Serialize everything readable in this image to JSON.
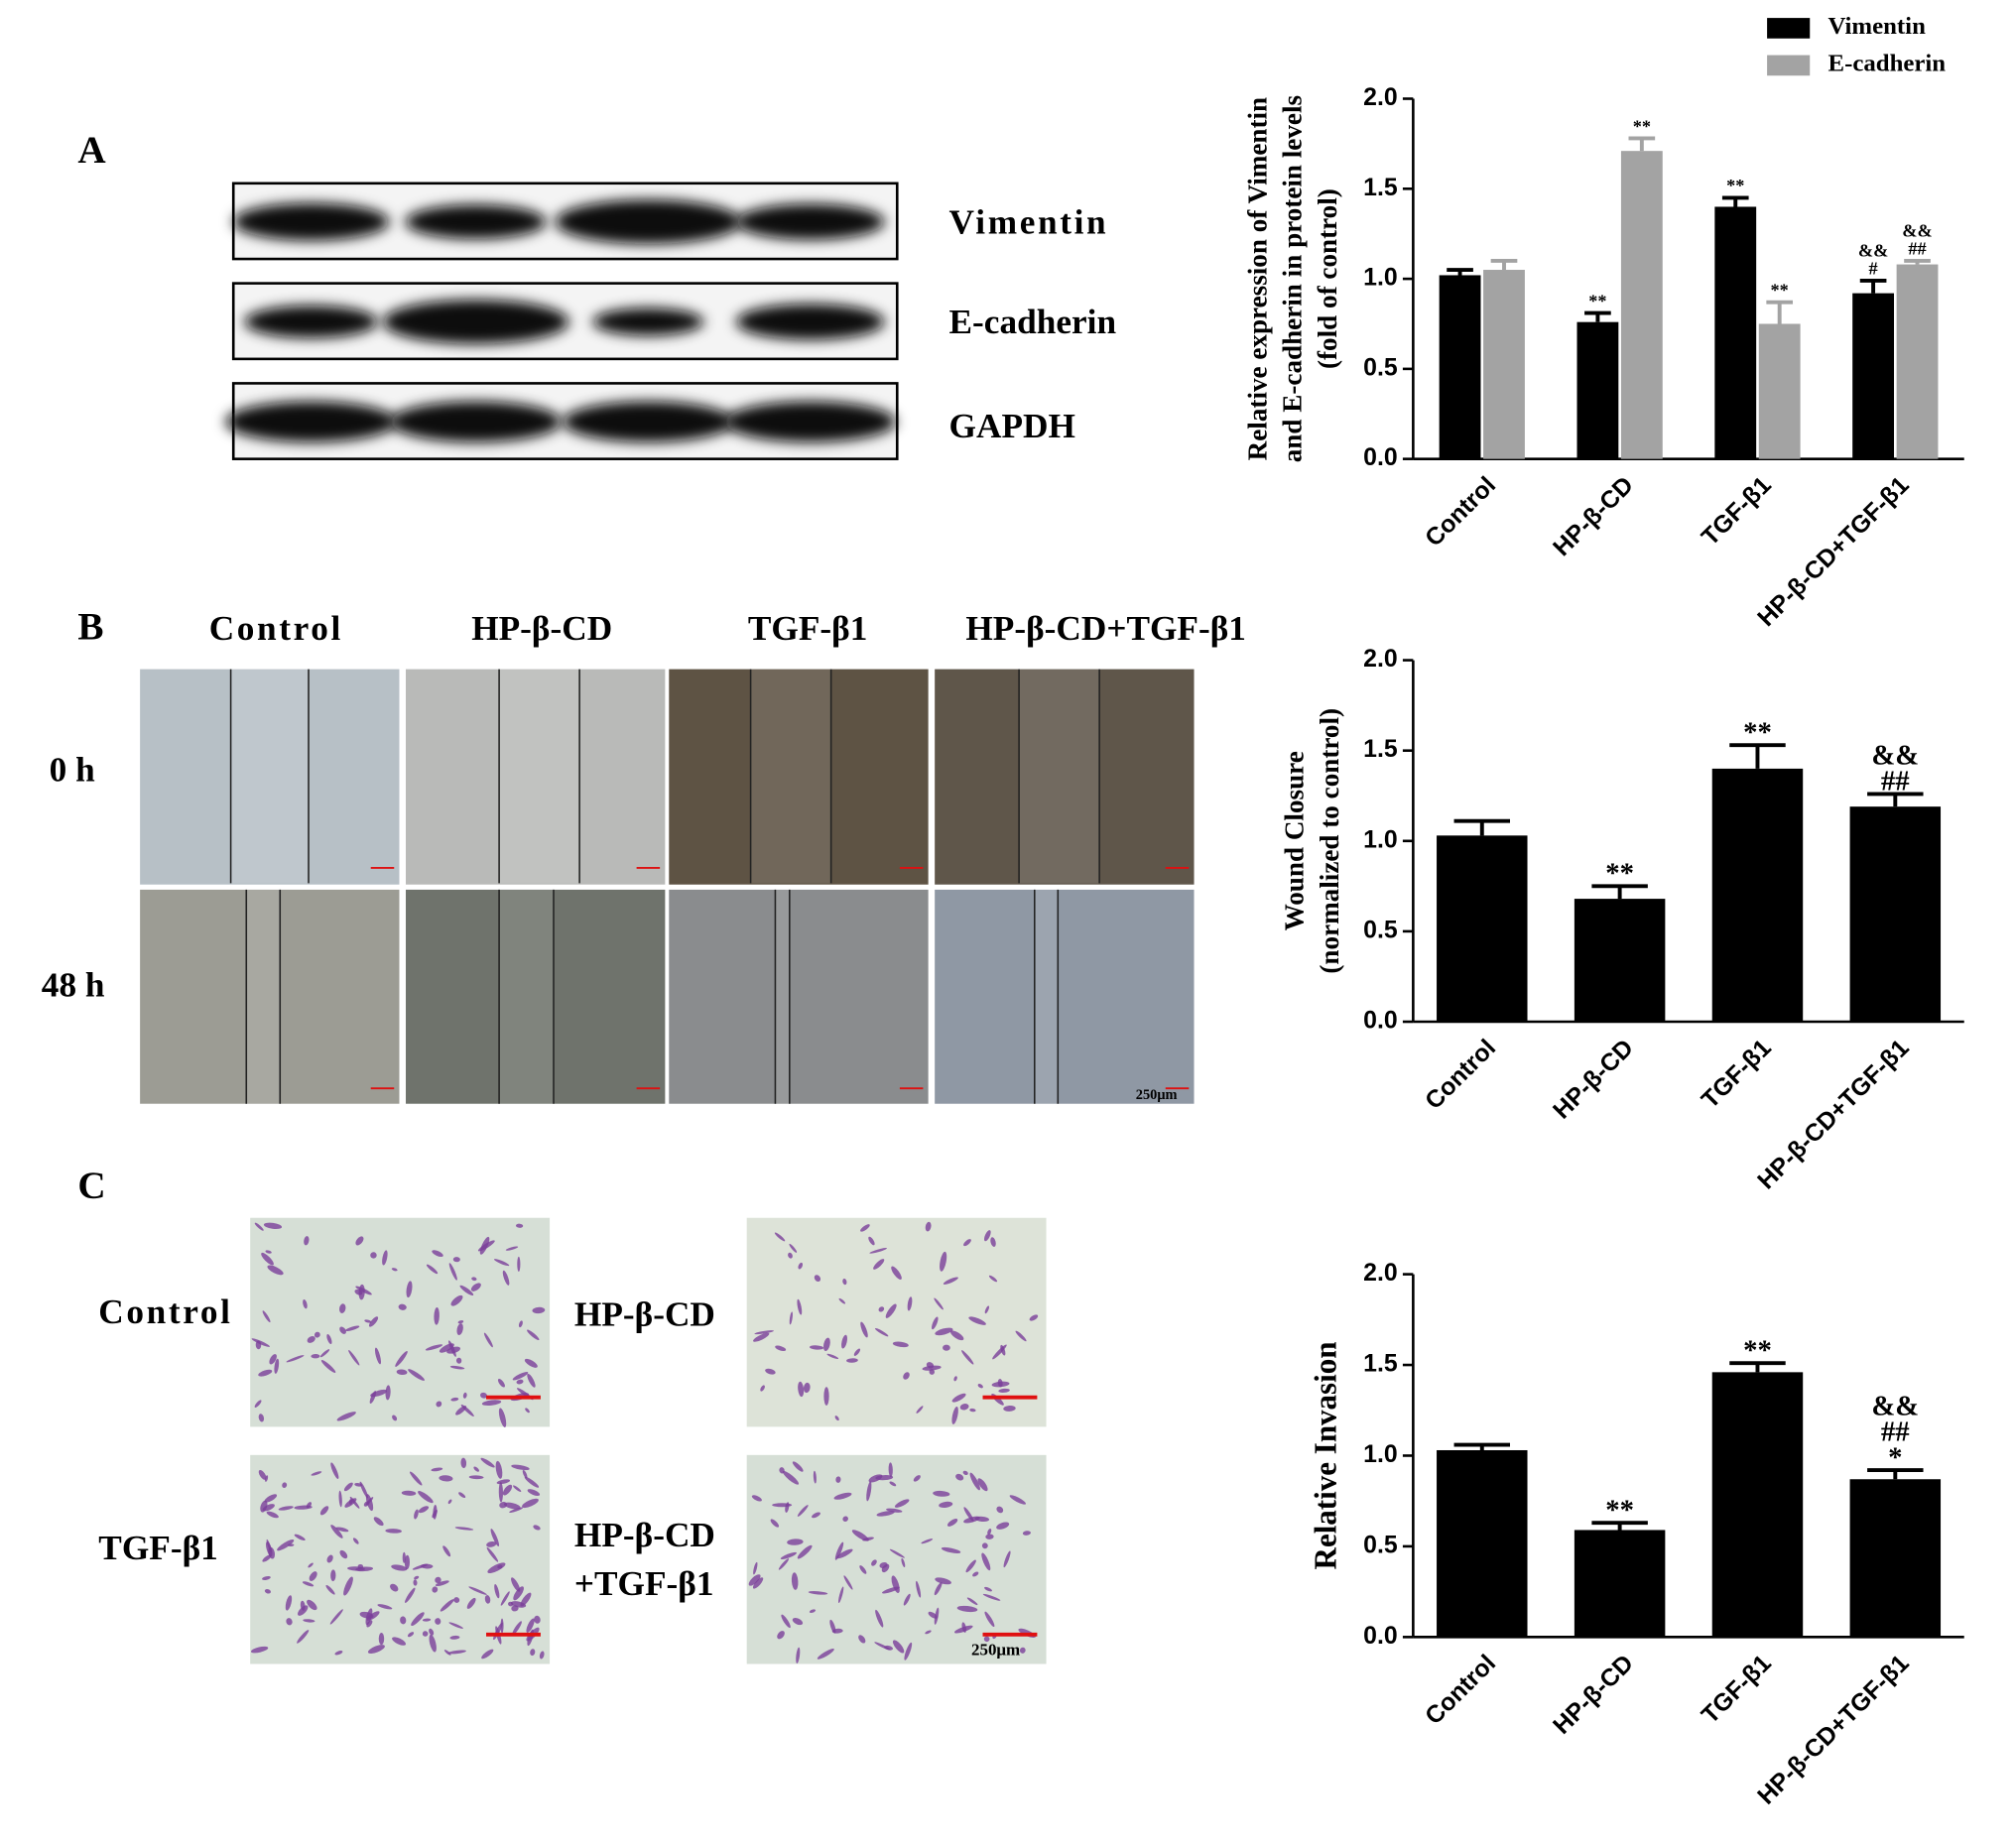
{
  "panel_labels": [
    "A",
    "B",
    "C"
  ],
  "western_blot": {
    "bands": [
      "Vimentin",
      "E-cadherin",
      "GAPDH"
    ]
  },
  "wound_healing": {
    "columns": [
      "Control",
      "HP-β-CD",
      "TGF-β1",
      "HP-β-CD+TGF-β1"
    ],
    "rows": [
      "0 h",
      "48 h"
    ],
    "scale_bar": "250μm"
  },
  "invasion": {
    "labels": [
      [
        "Control"
      ],
      [
        "HP-β-CD"
      ],
      [
        "TGF-β1"
      ],
      [
        "HP-β-CD",
        "+TGF-β1"
      ]
    ],
    "scale_bar": "250μm"
  },
  "chart_data": [
    {
      "type": "bar",
      "ylabel": [
        "Relative expression of Vimentin",
        "and E-cadherin in protein levels",
        "(fold of control)"
      ],
      "categories": [
        "Control",
        "HP-β-CD",
        "TGF-β1",
        "HP-β-CD+TGF-β1"
      ],
      "series": [
        {
          "name": "Vimentin",
          "color": "#000000",
          "values": [
            1.02,
            0.76,
            1.4,
            0.92
          ],
          "errors": [
            0.03,
            0.05,
            0.05,
            0.07
          ],
          "annotations": [
            null,
            [
              "**"
            ],
            [
              "**"
            ],
            [
              "&&",
              "#"
            ]
          ]
        },
        {
          "name": "E-cadherin",
          "color": "#a3a3a3",
          "values": [
            1.05,
            1.71,
            0.75,
            1.08
          ],
          "errors": [
            0.05,
            0.07,
            0.12,
            0.02
          ],
          "annotations": [
            null,
            [
              "**"
            ],
            [
              "**"
            ],
            [
              "&&",
              "##"
            ]
          ]
        }
      ],
      "ylim": [
        0,
        2
      ],
      "yticks": [
        {
          "value": 0,
          "label": "0.0"
        },
        0.5,
        {
          "value": 1,
          "label": "1.0"
        },
        1.5,
        {
          "value": 2,
          "label": "2.0"
        }
      ],
      "legend": "top-right"
    },
    {
      "type": "bar",
      "ylabel": [
        "Wound Closure",
        "(normalized to control)"
      ],
      "categories": [
        "Control",
        "HP-β-CD",
        "TGF-β1",
        "HP-β-CD+TGF-β1"
      ],
      "color": "#000000",
      "values": [
        1.03,
        0.68,
        1.4,
        1.19
      ],
      "errors": [
        0.08,
        0.07,
        0.13,
        0.07
      ],
      "annotations": [
        null,
        [
          "**"
        ],
        [
          "**"
        ],
        [
          "&&",
          "##"
        ]
      ],
      "ylim": [
        0,
        2
      ],
      "yticks": [
        {
          "value": 0,
          "label": "0.0"
        },
        0.5,
        {
          "value": 1,
          "label": "1.0"
        },
        1.5,
        {
          "value": 2,
          "label": "2.0"
        }
      ]
    },
    {
      "type": "bar",
      "ylabel": [
        "Relative Invasion"
      ],
      "categories": [
        "Control",
        "HP-β-CD",
        "TGF-β1",
        "HP-β-CD+TGF-β1"
      ],
      "color": "#000000",
      "values": [
        1.03,
        0.59,
        1.46,
        0.87
      ],
      "errors": [
        0.03,
        0.04,
        0.05,
        0.05
      ],
      "annotations": [
        null,
        [
          "**"
        ],
        [
          "**"
        ],
        [
          "&&",
          "##",
          "*"
        ]
      ],
      "ylim": [
        0,
        2
      ],
      "yticks": [
        {
          "value": 0,
          "label": "0.0"
        },
        0.5,
        {
          "value": 1,
          "label": "1.0"
        },
        1.5,
        {
          "value": 2,
          "label": "2.0"
        }
      ]
    }
  ]
}
